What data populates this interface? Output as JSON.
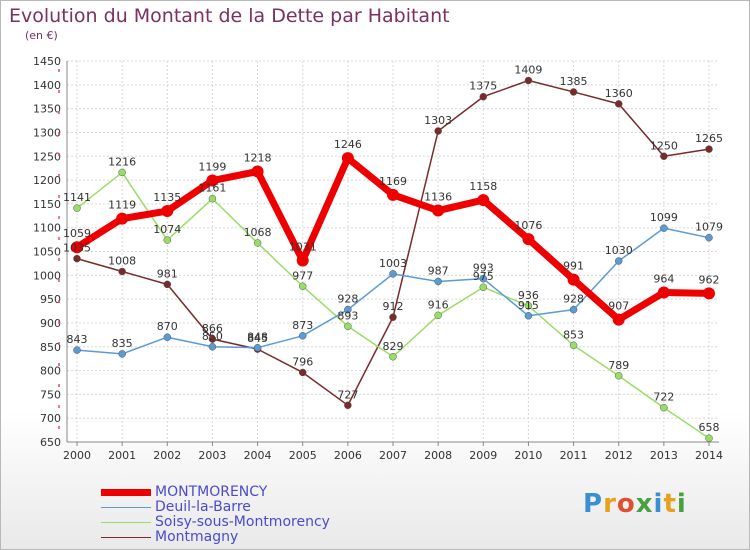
{
  "title": "Evolution du Montant de la Dette par Habitant",
  "unit": "(en €)",
  "logo": {
    "text": "Proxiti",
    "letter_colors": [
      "#3a8fd0",
      "#e8a020",
      "#e05030",
      "#4aa040",
      "#3a8fd0",
      "#e8a020",
      "#4aa040"
    ]
  },
  "chart_data": {
    "type": "line",
    "title": "Evolution du Montant de la Dette par Habitant",
    "ylabel": "(en €)",
    "xlabel": "",
    "ylim": [
      650,
      1450
    ],
    "yticks": [
      650,
      700,
      750,
      800,
      850,
      900,
      950,
      1000,
      1050,
      1100,
      1150,
      1200,
      1250,
      1300,
      1350,
      1400,
      1450
    ],
    "grid": true,
    "legend_position": "bottom-left",
    "categories": [
      "2000",
      "2001",
      "2002",
      "2003",
      "2004",
      "2005",
      "2006",
      "2007",
      "2008",
      "2009",
      "2010",
      "2011",
      "2012",
      "2013",
      "2014"
    ],
    "series": [
      {
        "name": "MONTMORENCY",
        "color": "#ee0000",
        "width": 7,
        "marker": 6,
        "values": [
          1059,
          1119,
          1135,
          1199,
          1218,
          1031,
          1246,
          1169,
          1136,
          1158,
          1076,
          991,
          907,
          964,
          962
        ]
      },
      {
        "name": "Deuil-la-Barre",
        "color": "#5b9bd5",
        "width": 1.5,
        "marker": 3.5,
        "values": [
          843,
          835,
          870,
          850,
          848,
          873,
          928,
          1003,
          987,
          993,
          915,
          928,
          1030,
          1099,
          1079
        ]
      },
      {
        "name": "Soisy-sous-Montmorency",
        "color": "#99dd66",
        "width": 1.5,
        "marker": 3.5,
        "values": [
          1141,
          1216,
          1074,
          1161,
          1068,
          977,
          893,
          829,
          916,
          975,
          936,
          853,
          789,
          722,
          658
        ]
      },
      {
        "name": "Montmagny",
        "color": "#7a2a2a",
        "width": 1.5,
        "marker": 3.5,
        "values": [
          1035,
          1008,
          981,
          866,
          845,
          796,
          727,
          912,
          1303,
          1375,
          1409,
          1385,
          1360,
          1250,
          1265
        ]
      }
    ]
  }
}
